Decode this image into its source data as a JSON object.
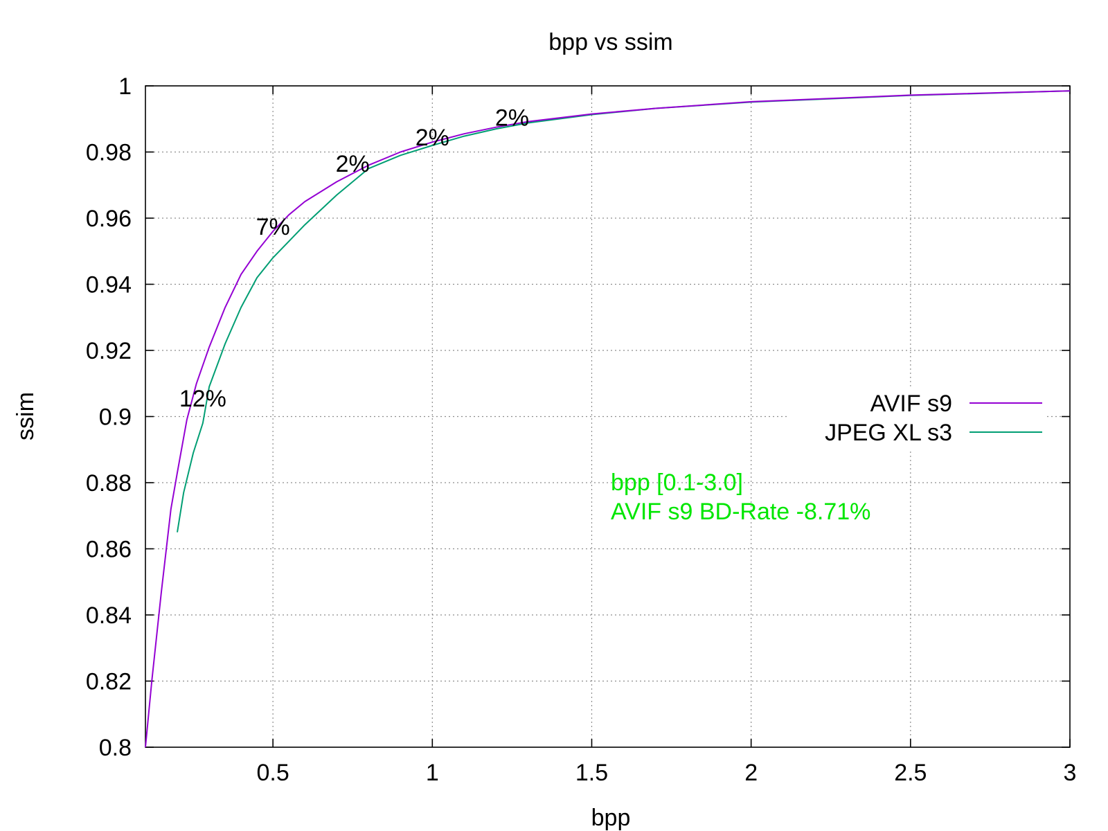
{
  "chart_data": {
    "type": "line",
    "title": "bpp vs ssim",
    "xlabel": "bpp",
    "ylabel": "ssim",
    "xlim": [
      0.1,
      3.0
    ],
    "ylim": [
      0.8,
      1.0
    ],
    "x_ticks": [
      0.5,
      1,
      1.5,
      2,
      2.5,
      3
    ],
    "x_tick_labels": [
      "0.5",
      "1",
      "1.5",
      "2",
      "2.5",
      "3"
    ],
    "y_ticks": [
      0.8,
      0.82,
      0.84,
      0.86,
      0.88,
      0.9,
      0.92,
      0.94,
      0.96,
      0.98,
      1
    ],
    "y_tick_labels": [
      "0.8",
      "0.82",
      "0.84",
      "0.86",
      "0.88",
      "0.9",
      "0.92",
      "0.94",
      "0.96",
      "0.98",
      "1"
    ],
    "grid": true,
    "legend_position": "right",
    "series": [
      {
        "name": "AVIF s9",
        "color": "#9400d3",
        "x": [
          0.1,
          0.12,
          0.15,
          0.18,
          0.2,
          0.23,
          0.26,
          0.3,
          0.35,
          0.4,
          0.45,
          0.5,
          0.55,
          0.6,
          0.7,
          0.8,
          0.9,
          1.0,
          1.1,
          1.2,
          1.3,
          1.5,
          1.7,
          2.0,
          2.5,
          3.0
        ],
        "y": [
          0.8,
          0.82,
          0.847,
          0.872,
          0.883,
          0.899,
          0.91,
          0.921,
          0.933,
          0.943,
          0.95,
          0.956,
          0.961,
          0.965,
          0.971,
          0.976,
          0.98,
          0.983,
          0.9855,
          0.9875,
          0.9892,
          0.9915,
          0.9932,
          0.9952,
          0.9972,
          0.9985
        ]
      },
      {
        "name": "JPEG XL s3",
        "color": "#009e73",
        "x": [
          0.2,
          0.22,
          0.25,
          0.28,
          0.3,
          0.35,
          0.4,
          0.45,
          0.5,
          0.55,
          0.6,
          0.7,
          0.8,
          0.9,
          1.0,
          1.1,
          1.2,
          1.3,
          1.5,
          1.7,
          2.0,
          2.5,
          3.0
        ],
        "y": [
          0.865,
          0.877,
          0.889,
          0.898,
          0.909,
          0.922,
          0.933,
          0.942,
          0.948,
          0.953,
          0.958,
          0.967,
          0.975,
          0.979,
          0.982,
          0.9848,
          0.987,
          0.9888,
          0.9913,
          0.9932,
          0.9951,
          0.9971,
          0.9985
        ]
      }
    ],
    "annotations": [
      {
        "text": "12%",
        "x": 0.28,
        "y": 0.903
      },
      {
        "text": "7%",
        "x": 0.5,
        "y": 0.955
      },
      {
        "text": "2%",
        "x": 0.75,
        "y": 0.974
      },
      {
        "text": "2%",
        "x": 1.0,
        "y": 0.982
      },
      {
        "text": "2%",
        "x": 1.25,
        "y": 0.988
      }
    ],
    "bd_rate_text": [
      "bpp [0.1-3.0]",
      "AVIF s9 BD-Rate -8.71%"
    ]
  }
}
